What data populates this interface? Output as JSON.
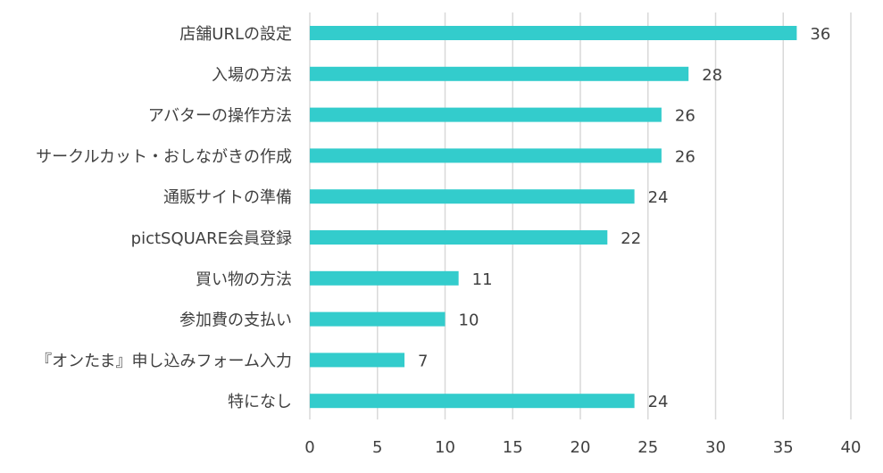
{
  "chart_data": {
    "type": "bar",
    "orientation": "horizontal",
    "title": "",
    "xlabel": "",
    "ylabel": "",
    "categories": [
      "店舗URLの設定",
      "入場の方法",
      "アバターの操作方法",
      "サークルカット・おしながきの作成",
      "通販サイトの準備",
      "pictSQUARE会員登録",
      "買い物の方法",
      "参加費の支払い",
      "『オンたま』申し込みフォーム入力",
      "特になし"
    ],
    "values": [
      36,
      28,
      26,
      26,
      24,
      22,
      11,
      10,
      7,
      24
    ],
    "xlim": [
      0,
      40
    ],
    "xticks": [
      0,
      5,
      10,
      15,
      20,
      25,
      30,
      35,
      40
    ],
    "grid": "vertical",
    "legend": "none",
    "bar_color": "#33CCCC"
  }
}
